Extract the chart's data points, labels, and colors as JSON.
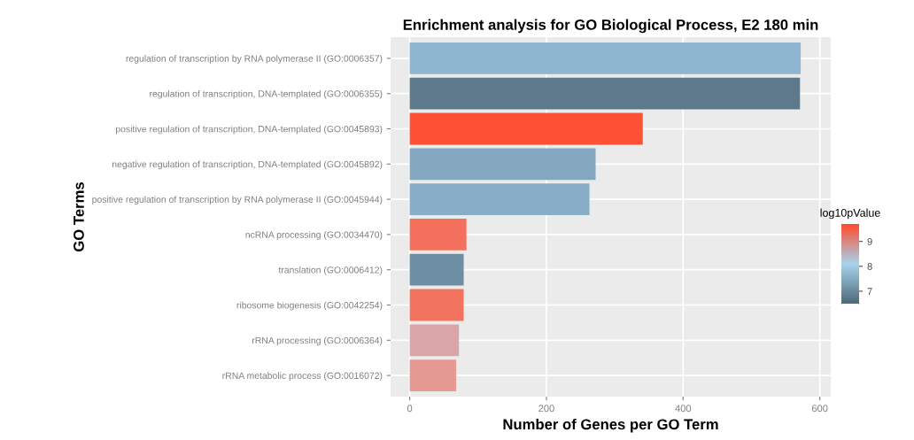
{
  "chart_data": {
    "type": "bar",
    "orientation": "horizontal",
    "title": "Enrichment analysis for GO Biological Process, E2 180 min",
    "xlabel": "Number of Genes per GO Term",
    "ylabel": "GO Terms",
    "clabel": "log10pValue",
    "categories": [
      "regulation of transcription by RNA polymerase II (GO:0006357)",
      "regulation of transcription, DNA-templated (GO:0006355)",
      "positive regulation of transcription, DNA-templated (GO:0045893)",
      "negative regulation of transcription, DNA-templated (GO:0045892)",
      "positive regulation of transcription by RNA polymerase II (GO:0045944)",
      "ncRNA processing (GO:0034470)",
      "translation (GO:0006412)",
      "ribosome biogenesis (GO:0042254)",
      "rRNA processing (GO:0006364)",
      "rRNA metabolic process (GO:0016072)"
    ],
    "values": [
      572,
      571,
      341,
      272,
      263,
      83,
      79,
      79,
      72,
      68
    ],
    "colors": [
      "#8fb6d0",
      "#5e7a8a",
      "#fe5237",
      "#84a7bf",
      "#88adc6",
      "#f2705c",
      "#6e8ea3",
      "#f2735e",
      "#d8a6a6",
      "#e49a92"
    ],
    "xlim": [
      -28,
      616
    ],
    "xticks": [
      0,
      200,
      400,
      600
    ],
    "clim": [
      6.5,
      9.7
    ],
    "cticks": [
      7,
      8,
      9
    ],
    "grid": true
  }
}
